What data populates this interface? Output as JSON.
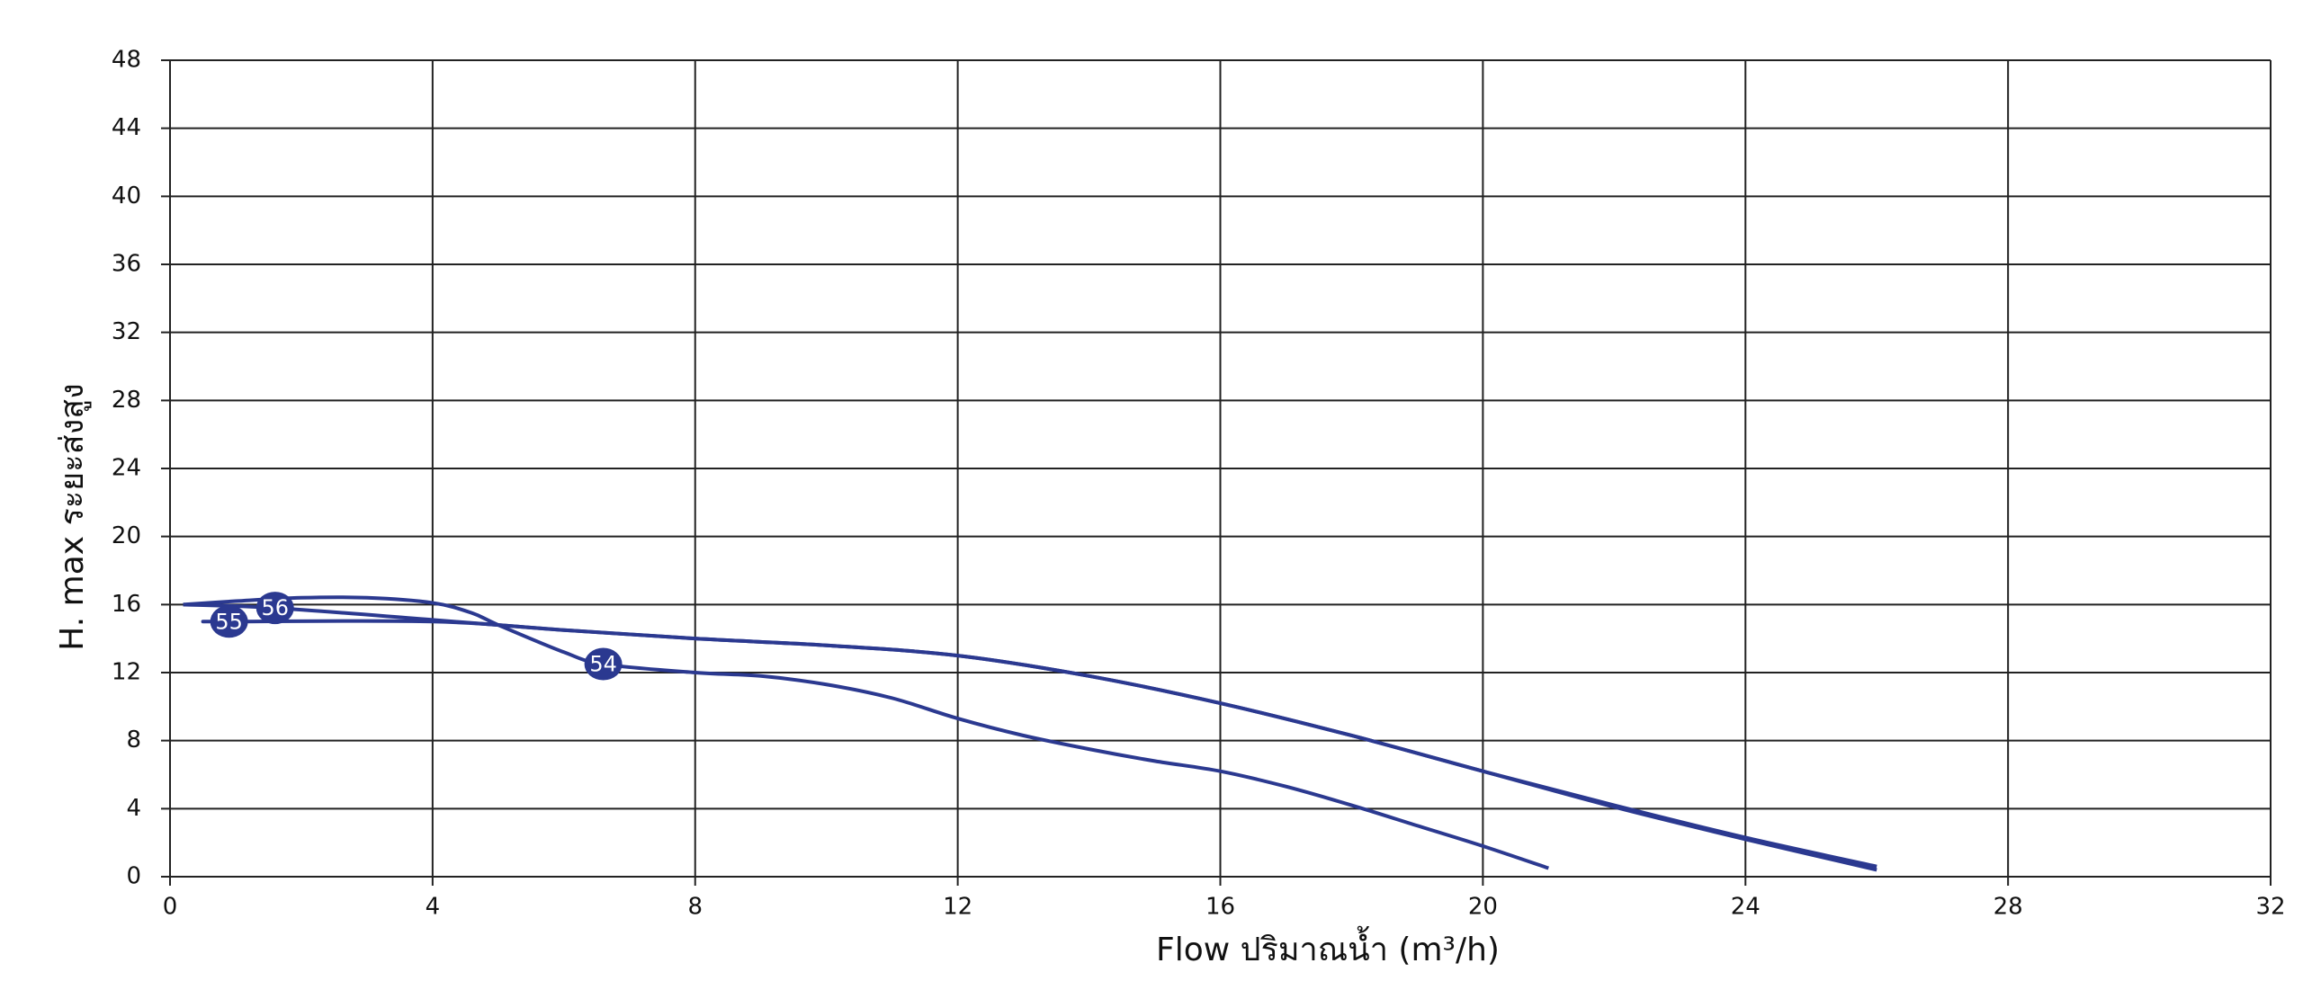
{
  "chart_data": {
    "type": "line",
    "x_label": "Flow ปริมาณน้ำ (m³/h)",
    "y_label": "H. max ระยะส่งสูง",
    "xlim": [
      0,
      32
    ],
    "xticks": [
      0,
      4,
      8,
      12,
      16,
      20,
      24,
      28,
      32
    ],
    "ylim": [
      0,
      48
    ],
    "yticks": [
      0,
      4,
      8,
      12,
      16,
      20,
      24,
      28,
      32,
      36,
      40,
      44,
      48
    ],
    "grid": true,
    "series": [
      {
        "name": "54",
        "color": "#2b3990",
        "x": [
          0.2,
          1,
          2,
          3,
          4,
          4.6,
          5,
          6,
          6.6,
          8,
          9,
          10,
          11,
          12,
          13,
          14,
          15,
          16,
          17,
          18,
          19,
          20,
          21
        ],
        "values": [
          16,
          16.2,
          16.4,
          16.4,
          16.1,
          15.5,
          14.8,
          13.2,
          12.5,
          12,
          11.8,
          11.3,
          10.5,
          9.3,
          8.3,
          7.5,
          6.8,
          6.2,
          5.3,
          4.2,
          3,
          1.8,
          0.5
        ]
      },
      {
        "name": "56",
        "color": "#2b3990",
        "x": [
          0.2,
          1.6,
          4,
          6,
          8,
          10,
          12,
          14,
          16,
          18,
          20,
          22,
          24,
          26
        ],
        "values": [
          16,
          15.8,
          15.1,
          14.5,
          14,
          13.6,
          13,
          11.8,
          10.2,
          8.3,
          6.2,
          4.2,
          2.3,
          0.6
        ]
      },
      {
        "name": "55",
        "color": "#2b3990",
        "x": [
          0.5,
          0.9,
          4,
          6,
          8,
          10,
          12,
          14,
          16,
          18,
          20,
          22,
          24,
          26
        ],
        "values": [
          15,
          15,
          15,
          14.5,
          14,
          13.6,
          13,
          11.8,
          10.2,
          8.3,
          6.2,
          4.1,
          2.2,
          0.4
        ]
      }
    ]
  }
}
